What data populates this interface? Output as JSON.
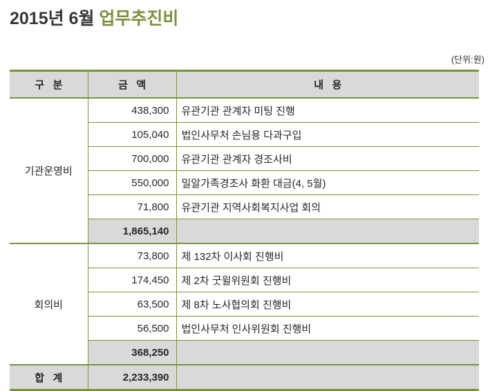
{
  "title": {
    "period": "2015년 6월 ",
    "subject": "업무추진비"
  },
  "unit_label": "(단위:원)",
  "colors": {
    "accent_green": "#76933C",
    "header_bg": "#D9D9D9",
    "text": "#262626"
  },
  "table": {
    "headers": {
      "category": "구   분",
      "amount": "금   액",
      "content": "내   용"
    },
    "sections": [
      {
        "category": "기관운영비",
        "rows": [
          {
            "amount": "438,300",
            "content": "유관기관 관계자 미팅 진행"
          },
          {
            "amount": "105,040",
            "content": "법인사무처 손님용 다과구입"
          },
          {
            "amount": "700,000",
            "content": "유관기관 관계자 경조사비"
          },
          {
            "amount": "550,000",
            "content": "밀알가족경조사 화환 대금(4, 5월)"
          },
          {
            "amount": "71,800",
            "content": "유관기관 지역사회복지사업 회의"
          }
        ],
        "subtotal": "1,865,140"
      },
      {
        "category": "회의비",
        "rows": [
          {
            "amount": "73,800",
            "content": "제 132차 이사회 진행비"
          },
          {
            "amount": "174,450",
            "content": "제 2차 굿윌위원회 진행비"
          },
          {
            "amount": "63,500",
            "content": "제 8차 노사협의회 진행비"
          },
          {
            "amount": "56,500",
            "content": "법인사무처 인사위원회 진행비"
          }
        ],
        "subtotal": "368,250"
      }
    ],
    "total": {
      "label": "합   계",
      "amount": "2,233,390"
    }
  }
}
